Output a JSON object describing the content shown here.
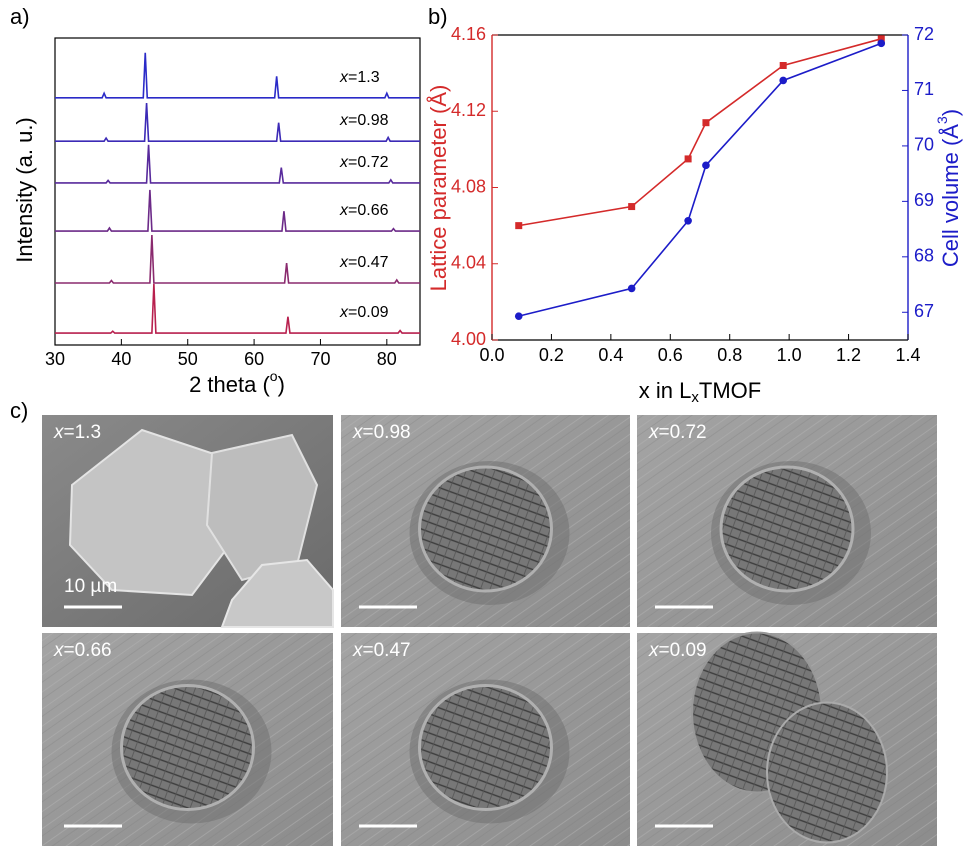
{
  "chart_data": [
    {
      "type": "line",
      "label": "a)",
      "xlabel": [
        "2 theta (",
        "o",
        ")"
      ],
      "ylabel": "Intensity (a. u.)",
      "xlim": [
        30,
        85
      ],
      "xticks": [
        30,
        40,
        50,
        60,
        70,
        80
      ],
      "ylim": [
        0,
        100
      ],
      "series": [
        {
          "name": "x=1.3",
          "color": "#2b2bc8",
          "x": [
            30,
            37.1,
            37.4,
            37.7,
            43.3,
            43.6,
            43.9,
            63.1,
            63.4,
            63.7,
            79.7,
            80.0,
            80.3,
            85
          ],
          "values": [
            80.5,
            80.5,
            82.0,
            80.5,
            80.5,
            95.2,
            80.5,
            80.5,
            87.5,
            80.5,
            80.5,
            82.0,
            80.5,
            80.5
          ]
        },
        {
          "name": "x=0.98",
          "color": "#3c2ab6",
          "x": [
            30,
            37.4,
            37.7,
            38.0,
            43.5,
            43.8,
            44.1,
            63.4,
            63.7,
            64.0,
            79.9,
            80.2,
            80.5,
            85
          ],
          "values": [
            66.4,
            66.4,
            67.4,
            66.4,
            66.4,
            78.8,
            66.4,
            66.4,
            72.4,
            66.4,
            66.4,
            67.6,
            66.4,
            66.4
          ]
        },
        {
          "name": "x=0.72",
          "color": "#582a9c",
          "x": [
            30,
            37.7,
            38.0,
            38.3,
            43.8,
            44.1,
            44.4,
            63.8,
            64.1,
            64.4,
            80.3,
            80.6,
            80.9,
            85
          ],
          "values": [
            52.8,
            52.8,
            53.6,
            52.8,
            52.8,
            65.2,
            52.8,
            52.8,
            57.8,
            52.8,
            52.8,
            53.8,
            52.8,
            52.8
          ]
        },
        {
          "name": "x=0.66",
          "color": "#6c2a88",
          "x": [
            30,
            37.9,
            38.2,
            38.5,
            44.0,
            44.3,
            44.6,
            64.2,
            64.5,
            64.8,
            80.7,
            81.0,
            81.3,
            85
          ],
          "values": [
            37.1,
            37.1,
            38.1,
            37.1,
            37.1,
            50.5,
            37.1,
            37.1,
            43.6,
            37.1,
            37.1,
            37.9,
            37.1,
            37.1
          ]
        },
        {
          "name": "x=0.47",
          "color": "#8a2a6e",
          "x": [
            30,
            38.2,
            38.5,
            38.8,
            44.3,
            44.6,
            44.9,
            64.6,
            64.9,
            65.2,
            81.2,
            81.5,
            81.8,
            85
          ],
          "values": [
            20.2,
            20.2,
            21.0,
            20.2,
            20.2,
            35.8,
            20.2,
            20.2,
            26.7,
            20.2,
            20.2,
            21.2,
            20.2,
            20.2
          ]
        },
        {
          "name": "x=0.09",
          "color": "#b8204e",
          "x": [
            30,
            38.4,
            38.7,
            39.0,
            44.6,
            44.9,
            45.2,
            64.8,
            65.1,
            65.4,
            81.7,
            82.0,
            82.3,
            85
          ],
          "values": [
            3.9,
            3.9,
            4.5,
            3.9,
            3.9,
            19.9,
            3.9,
            3.9,
            9.2,
            3.9,
            3.9,
            4.7,
            3.9,
            3.9
          ]
        }
      ]
    },
    {
      "type": "line",
      "label": "b)",
      "xlabel": [
        "x in L",
        "x",
        "TMOF"
      ],
      "ylabel": "Lattice parameter (Å)",
      "y2label": [
        "Cell volume (Å",
        "3",
        ")"
      ],
      "xlim": [
        0,
        1.4
      ],
      "xticks": [
        {
          "value": 0,
          "label": "0.0"
        },
        0.2,
        0.4,
        0.6,
        0.8,
        {
          "value": 1,
          "label": "1.0"
        },
        1.2,
        1.4
      ],
      "ylim": [
        4.0,
        4.16
      ],
      "yticks": [
        {
          "value": 4,
          "label": "4.00"
        },
        4.04,
        4.08,
        4.12,
        4.16
      ],
      "y2lim": [
        66.5,
        72
      ],
      "y2ticks": [
        67,
        68,
        69,
        70,
        71,
        72
      ],
      "x": [
        0.09,
        0.47,
        0.66,
        0.72,
        0.98,
        1.31
      ],
      "series": [
        {
          "color": "#d42a2a",
          "marker": "square",
          "values": [
            4.06,
            4.07,
            4.095,
            4.114,
            4.144,
            4.158
          ]
        },
        {
          "color": "#1c1cc8",
          "marker": "circle",
          "axis": "y2",
          "values": [
            66.93,
            67.43,
            68.65,
            69.65,
            71.18,
            71.85
          ]
        }
      ]
    }
  ],
  "images": {
    "label": "c)",
    "scale_bar": "10 µm",
    "panels": [
      "x=1.3",
      "x=0.98",
      "x=0.72",
      "x=0.66",
      "x=0.47",
      "x=0.09"
    ]
  }
}
